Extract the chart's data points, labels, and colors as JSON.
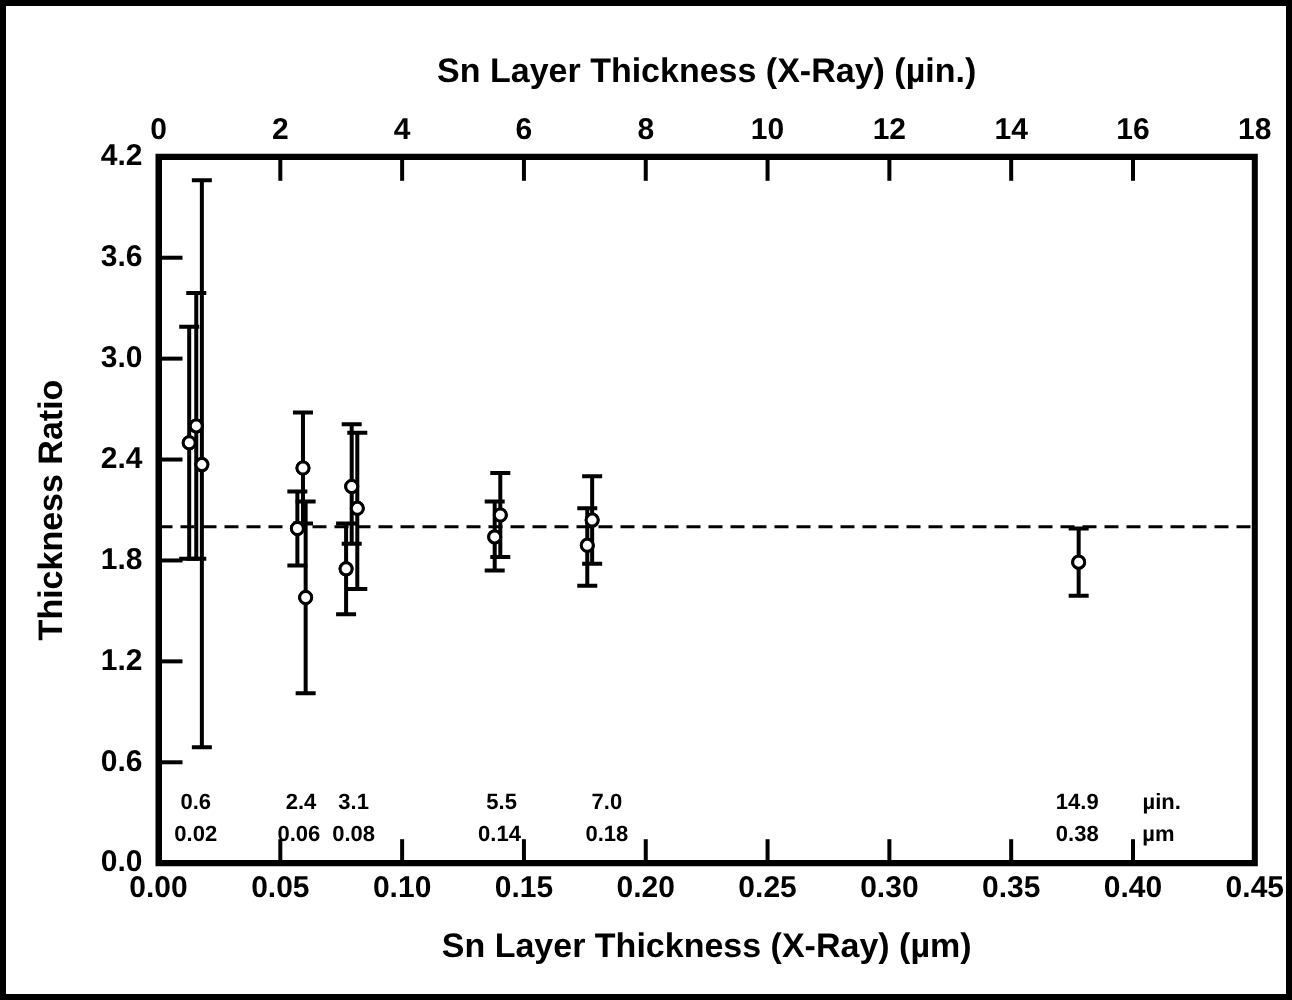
{
  "chart_data": {
    "type": "scatter",
    "x2label": "Sn Layer Thickness (X-Ray) (µin.)",
    "xlabel": "Sn Layer Thickness (X-Ray) (µm)",
    "ylabel": "Thickness Ratio",
    "series": [
      {
        "color": "#000000",
        "x": [
          0.0126,
          0.0155,
          0.0178,
          0.0593,
          0.057,
          0.0604,
          0.0793,
          0.0816,
          0.077,
          0.1403,
          0.138,
          0.178,
          0.176,
          0.3777
        ],
        "values": [
          2.5,
          2.6,
          2.37,
          2.35,
          1.99,
          1.58,
          2.24,
          2.11,
          1.75,
          2.07,
          1.94,
          2.04,
          1.89,
          1.79
        ],
        "errors": [
          [
            1.81,
            3.19
          ],
          [
            1.81,
            3.39
          ],
          [
            0.69,
            4.06
          ],
          [
            2.02,
            2.68
          ],
          [
            1.77,
            2.21
          ],
          [
            1.01,
            2.15
          ],
          [
            1.9,
            2.61
          ],
          [
            1.63,
            2.56
          ],
          [
            1.48,
            2.02
          ],
          [
            1.82,
            2.32
          ],
          [
            1.74,
            2.15
          ],
          [
            1.78,
            2.3
          ],
          [
            1.65,
            2.11
          ],
          [
            1.59,
            1.99
          ]
        ]
      }
    ],
    "marker": "circle",
    "grid": false,
    "legend": false,
    "xlim": [
      0,
      0.45
    ],
    "xticks": [
      {
        "value": 0,
        "label": "0.00"
      },
      {
        "value": 0.05,
        "label": "0.05"
      },
      {
        "value": 0.1,
        "label": "0.10"
      },
      {
        "value": 0.15,
        "label": "0.15"
      },
      {
        "value": 0.2,
        "label": "0.20"
      },
      {
        "value": 0.25,
        "label": "0.25"
      },
      {
        "value": 0.3,
        "label": "0.30"
      },
      {
        "value": 0.35,
        "label": "0.35"
      },
      {
        "value": 0.4,
        "label": "0.40"
      },
      {
        "value": 0.45,
        "label": "0.45"
      }
    ],
    "x2lim": [
      0,
      18
    ],
    "x2ticks": [
      0,
      2,
      4,
      6,
      8,
      10,
      12,
      14,
      16,
      18
    ],
    "ylim": [
      0,
      4.2
    ],
    "yticks": [
      {
        "value": 0,
        "label": "0.0"
      },
      0.6,
      1.2,
      1.8,
      2.4,
      {
        "value": 3,
        "label": "3.0"
      },
      3.6,
      4.2
    ],
    "ref_lines": [
      {
        "axis": "y",
        "value": 2.0,
        "line_style": "dashed",
        "color": "#000000"
      }
    ],
    "annotations": [
      "0.6",
      "0.02",
      "2.4",
      "0.06",
      "3.1",
      "0.08",
      "5.5",
      "0.14",
      "7.0",
      "0.18",
      "14.9",
      "0.38",
      "µin.",
      "µm"
    ]
  }
}
